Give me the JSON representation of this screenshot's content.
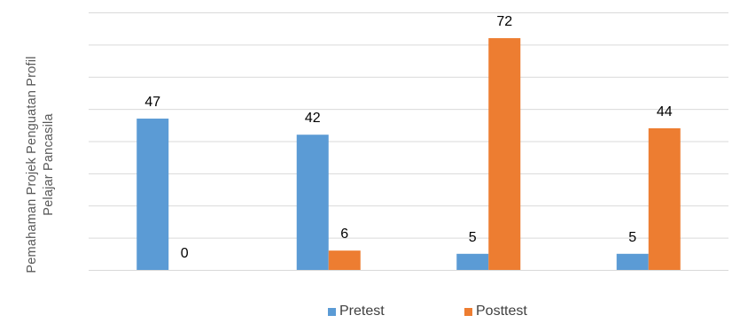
{
  "chart_data": {
    "type": "bar",
    "categories": [
      "",
      "",
      "",
      ""
    ],
    "series": [
      {
        "name": "Pretest",
        "values": [
          47,
          42,
          5,
          5
        ],
        "color": "#5b9bd5"
      },
      {
        "name": "Posttest",
        "values": [
          0,
          6,
          72,
          44
        ],
        "color": "#ed7d31"
      }
    ],
    "ylabel_lines": [
      "Pemahaman Projek Penguatan Profil",
      "Pelajar Pancasila"
    ],
    "ylim": [
      0,
      80
    ],
    "grid": true,
    "gridline_color": "#d9d9d9",
    "legend_position": "bottom"
  }
}
